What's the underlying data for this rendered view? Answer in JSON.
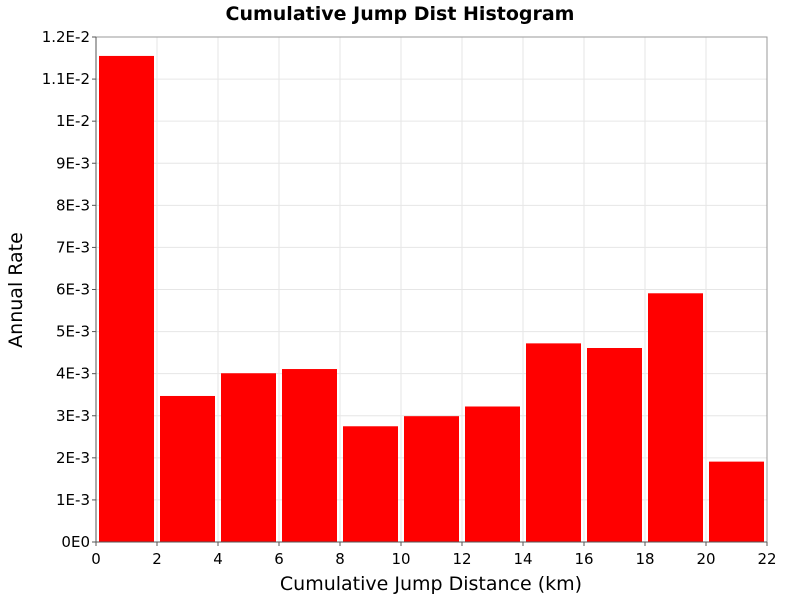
{
  "chart_data": {
    "type": "bar",
    "title": "Cumulative Jump Dist Histogram",
    "xlabel": "Cumulative Jump Distance (km)",
    "ylabel": "Annual Rate",
    "xlim": [
      0,
      22
    ],
    "ylim": [
      0,
      0.012
    ],
    "grid": true,
    "legend": "none",
    "bar_color": "#ff0000",
    "bin_width": 2,
    "x": [
      1,
      3,
      5,
      7,
      9,
      11,
      13,
      15,
      17,
      19,
      21
    ],
    "values": [
      0.01155,
      0.00347,
      0.00401,
      0.00411,
      0.00275,
      0.00299,
      0.00322,
      0.00472,
      0.00461,
      0.00591,
      0.00191
    ],
    "x_ticks": [
      0,
      2,
      4,
      6,
      8,
      10,
      12,
      14,
      16,
      18,
      20,
      22
    ],
    "x_tick_labels": [
      "0",
      "2",
      "4",
      "6",
      "8",
      "10",
      "12",
      "14",
      "16",
      "18",
      "20",
      "22"
    ],
    "y_ticks": [
      0,
      0.001,
      0.002,
      0.003,
      0.004,
      0.005,
      0.006,
      0.007,
      0.008,
      0.009,
      0.01,
      0.011,
      0.012
    ],
    "y_tick_labels": [
      "0E0",
      "1E-3",
      "2E-3",
      "3E-3",
      "4E-3",
      "5E-3",
      "6E-3",
      "7E-3",
      "8E-3",
      "9E-3",
      "1E-2",
      "1.1E-2",
      "1.2E-2"
    ]
  }
}
